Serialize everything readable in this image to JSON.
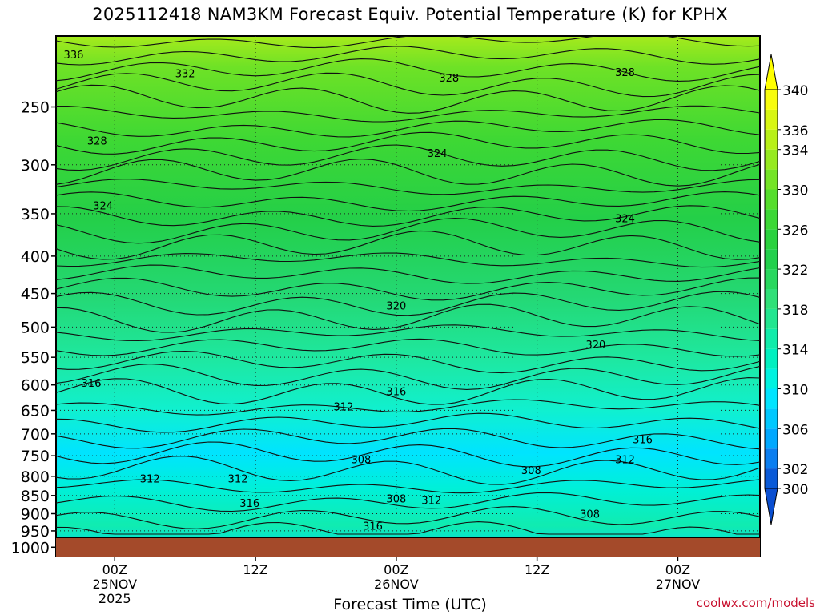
{
  "title": "2025112418 NAM3KM Forecast Equiv. Potential Temperature (K) for KPHX",
  "credit": "coolwx.com/models",
  "chart_data": {
    "type": "heatmap",
    "variable": "Equivalent potential temperature",
    "units": "K",
    "station": "KPHX",
    "model": "NAM3KM",
    "init": "2025112418",
    "xlabel": "Forecast Time (UTC)",
    "ylabel": "",
    "x_range_hours": [
      -5,
      55
    ],
    "x_ticks": [
      {
        "hour": 0,
        "labels": [
          "00Z",
          "25NOV",
          "2025"
        ]
      },
      {
        "hour": 12,
        "labels": [
          "12Z"
        ]
      },
      {
        "hour": 24,
        "labels": [
          "00Z",
          "26NOV"
        ]
      },
      {
        "hour": 36,
        "labels": [
          "12Z"
        ]
      },
      {
        "hour": 48,
        "labels": [
          "00Z",
          "27NOV"
        ]
      }
    ],
    "y_scale": "log",
    "y_range_hpa": [
      1030,
      200
    ],
    "y_ticks": [
      250,
      300,
      350,
      400,
      450,
      500,
      550,
      600,
      650,
      700,
      750,
      800,
      850,
      900,
      950,
      1000
    ],
    "surface_pressure_hpa": 970,
    "grid": true,
    "colorbar": {
      "placement": "right",
      "levels": [
        300,
        302,
        304,
        306,
        308,
        310,
        312,
        314,
        316,
        318,
        320,
        322,
        324,
        326,
        328,
        330,
        332,
        334,
        336,
        338,
        340
      ],
      "tick_labels": [
        "340",
        "336",
        "334",
        "330",
        "326",
        "322",
        "318",
        "314",
        "310",
        "306",
        "302",
        "300"
      ],
      "tick_values": [
        340,
        336,
        334,
        330,
        326,
        322,
        318,
        314,
        310,
        306,
        302,
        300
      ],
      "colors": [
        "#0a5ad8",
        "#0b7ef0",
        "#00a8ff",
        "#00c8ff",
        "#00e4ff",
        "#00f2e0",
        "#00f0c0",
        "#10ecaa",
        "#22e690",
        "#30e078",
        "#28d85e",
        "#22d04c",
        "#2ad23e",
        "#3cd836",
        "#55de2c",
        "#74e426",
        "#96ea20",
        "#b8f018",
        "#d8f612",
        "#f8fc0c"
      ]
    },
    "contour_labels": [
      {
        "text": "336",
        "hour": -3.5,
        "p": 212
      },
      {
        "text": "332",
        "hour": 6,
        "p": 225
      },
      {
        "text": "328",
        "hour": 28.5,
        "p": 228
      },
      {
        "text": "328",
        "hour": 43.5,
        "p": 224
      },
      {
        "text": "328",
        "hour": -1.5,
        "p": 278
      },
      {
        "text": "324",
        "hour": 27.5,
        "p": 289
      },
      {
        "text": "324",
        "hour": -1,
        "p": 341
      },
      {
        "text": "324",
        "hour": 43.5,
        "p": 355
      },
      {
        "text": "320",
        "hour": 24,
        "p": 467
      },
      {
        "text": "320",
        "hour": 41,
        "p": 528
      },
      {
        "text": "316",
        "hour": -2,
        "p": 596
      },
      {
        "text": "316",
        "hour": 24,
        "p": 612
      },
      {
        "text": "312",
        "hour": 19.5,
        "p": 642
      },
      {
        "text": "316",
        "hour": 45,
        "p": 712
      },
      {
        "text": "312",
        "hour": 43.5,
        "p": 758
      },
      {
        "text": "308",
        "hour": 21,
        "p": 758
      },
      {
        "text": "308",
        "hour": 35.5,
        "p": 784
      },
      {
        "text": "312",
        "hour": 3,
        "p": 806
      },
      {
        "text": "312",
        "hour": 10.5,
        "p": 806
      },
      {
        "text": "316",
        "hour": 11.5,
        "p": 870
      },
      {
        "text": "308",
        "hour": 24,
        "p": 858
      },
      {
        "text": "312",
        "hour": 27,
        "p": 862
      },
      {
        "text": "308",
        "hour": 40.5,
        "p": 900
      },
      {
        "text": "316",
        "hour": 22,
        "p": 935
      }
    ]
  }
}
